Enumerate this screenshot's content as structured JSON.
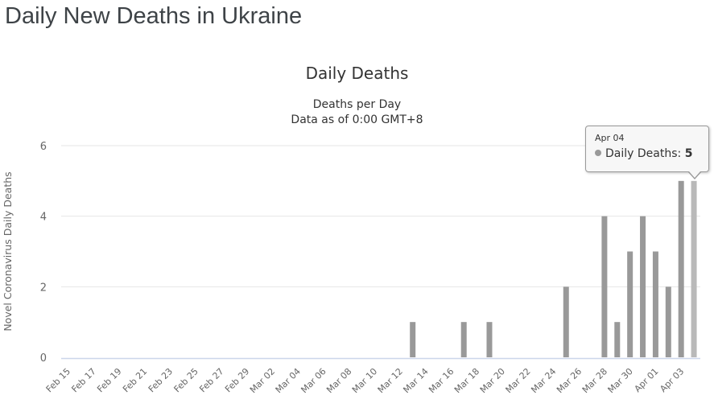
{
  "page": {
    "title": "Daily New Deaths in Ukraine"
  },
  "tooltip": {
    "date": "Apr 04",
    "series_label": "Daily Deaths:",
    "value": "5",
    "bullet_color": "#999999"
  },
  "chart_data": {
    "type": "bar",
    "title": "Daily Deaths",
    "subtitle": [
      "Deaths per Day",
      "Data as of 0:00 GMT+8"
    ],
    "xlabel": "",
    "ylabel": "Novel Coronavirus Daily Deaths",
    "ylim": [
      0,
      6
    ],
    "yticks": [
      0,
      2,
      4,
      6
    ],
    "grid": "on",
    "legend": "off",
    "label_step": 2,
    "bar_color": "#999999",
    "hover_color": "#b9b9b9",
    "grid_color": "#e6e6e6",
    "axis_line_color": "#ccd6eb",
    "tick_label_color": "#666666",
    "hover_index": 49,
    "categories": [
      "Feb 15",
      "Feb 16",
      "Feb 17",
      "Feb 18",
      "Feb 19",
      "Feb 20",
      "Feb 21",
      "Feb 22",
      "Feb 23",
      "Feb 24",
      "Feb 25",
      "Feb 26",
      "Feb 27",
      "Feb 28",
      "Feb 29",
      "Mar 01",
      "Mar 02",
      "Mar 03",
      "Mar 04",
      "Mar 05",
      "Mar 06",
      "Mar 07",
      "Mar 08",
      "Mar 09",
      "Mar 10",
      "Mar 11",
      "Mar 12",
      "Mar 13",
      "Mar 14",
      "Mar 15",
      "Mar 16",
      "Mar 17",
      "Mar 18",
      "Mar 19",
      "Mar 20",
      "Mar 21",
      "Mar 22",
      "Mar 23",
      "Mar 24",
      "Mar 25",
      "Mar 26",
      "Mar 27",
      "Mar 28",
      "Mar 29",
      "Mar 30",
      "Mar 31",
      "Apr 01",
      "Apr 02",
      "Apr 03",
      "Apr 04"
    ],
    "values": [
      0,
      0,
      0,
      0,
      0,
      0,
      0,
      0,
      0,
      0,
      0,
      0,
      0,
      0,
      0,
      0,
      0,
      0,
      0,
      0,
      0,
      0,
      0,
      0,
      0,
      0,
      0,
      1,
      0,
      0,
      0,
      1,
      0,
      1,
      0,
      0,
      0,
      0,
      0,
      2,
      0,
      0,
      4,
      1,
      3,
      4,
      3,
      2,
      5,
      5
    ]
  }
}
